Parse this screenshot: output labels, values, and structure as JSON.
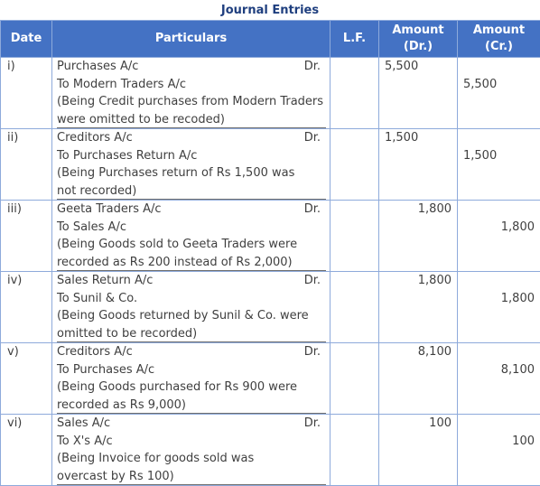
{
  "title": "Journal Entries",
  "headers": {
    "date": "Date",
    "particulars": "Particulars",
    "lf": "L.F.",
    "amount_dr_line1": "Amount",
    "amount_dr_line2": "(Dr.)",
    "amount_cr_line1": "Amount",
    "amount_cr_line2": "(Cr.)"
  },
  "entries": [
    {
      "date": "i)",
      "debit_account": "Purchases A/c",
      "dr_label": "Dr.",
      "credit_account": "To Modern Traders A/c",
      "narration1": "(Being Credit purchases from Modern Traders",
      "narration2": "were omitted to be recoded)",
      "dr_amount": "5,500",
      "cr_amount": "5,500"
    },
    {
      "date": "ii)",
      "debit_account": "Creditors A/c",
      "dr_label": "Dr.",
      "credit_account": "To Purchases Return A/c",
      "narration1": "(Being Purchases return of Rs 1,500 was",
      "narration2": "not recorded)",
      "dr_amount": "1,500",
      "cr_amount": "1,500"
    },
    {
      "date": "iii)",
      "debit_account": "Geeta Traders A/c",
      "dr_label": "Dr.",
      "credit_account": "To Sales A/c",
      "narration1": "(Being Goods sold to Geeta Traders were",
      "narration2": "recorded as Rs 200 instead of Rs 2,000)",
      "dr_amount": "1,800",
      "cr_amount": "1,800"
    },
    {
      "date": "iv)",
      "debit_account": "Sales Return A/c",
      "dr_label": "Dr.",
      "credit_account": "To Sunil & Co.",
      "narration1": "(Being Goods returned by Sunil & Co. were",
      "narration2": "omitted to be recorded)",
      "dr_amount": "1,800",
      "cr_amount": "1,800"
    },
    {
      "date": "v)",
      "debit_account": "Creditors A/c",
      "dr_label": "Dr.",
      "credit_account": "To Purchases A/c",
      "narration1": "(Being Goods purchased for Rs 900 were",
      "narration2": "recorded as Rs 9,000)",
      "dr_amount": "8,100",
      "cr_amount": "8,100"
    },
    {
      "date": "vi)",
      "debit_account": "Sales A/c",
      "dr_label": "Dr.",
      "credit_account": "To X's A/c",
      "narration1": "(Being Invoice for goods sold was",
      "narration2": "overcast by Rs 100)",
      "dr_amount": "100",
      "cr_amount": "100"
    }
  ]
}
